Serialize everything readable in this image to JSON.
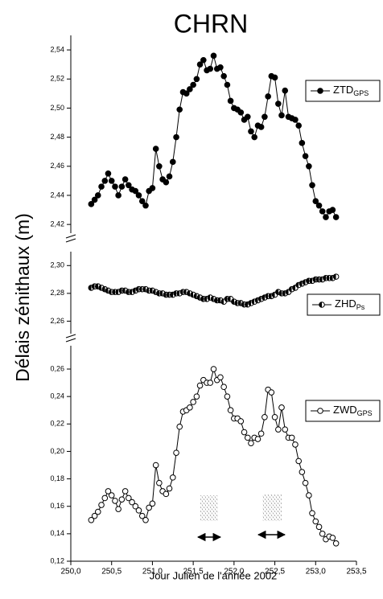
{
  "chart_data": {
    "type": "line",
    "title": "CHRN",
    "xlabel": "Jour Julien de l'année 2002",
    "ylabel": "Délais zénithaux (m)",
    "xlim": [
      250,
      253.5
    ],
    "xticks": [
      {
        "value": 250,
        "label": "250,0"
      },
      {
        "value": 250.5,
        "label": "250,5"
      },
      {
        "value": 251,
        "label": "251,0"
      },
      {
        "value": 251.5,
        "label": "251,5"
      },
      {
        "value": 252,
        "label": "252,0"
      },
      {
        "value": 252.5,
        "label": "252,5"
      },
      {
        "value": 253,
        "label": "253,0"
      },
      {
        "value": 253.5,
        "label": "253,5"
      }
    ],
    "x": [
      250.25,
      250.292,
      250.333,
      250.375,
      250.417,
      250.458,
      250.5,
      250.542,
      250.583,
      250.625,
      250.667,
      250.708,
      250.75,
      250.792,
      250.833,
      250.875,
      250.917,
      250.958,
      251.0,
      251.042,
      251.083,
      251.125,
      251.167,
      251.208,
      251.25,
      251.292,
      251.333,
      251.375,
      251.417,
      251.458,
      251.5,
      251.542,
      251.583,
      251.625,
      251.667,
      251.708,
      251.75,
      251.792,
      251.833,
      251.875,
      251.917,
      251.958,
      252.0,
      252.042,
      252.083,
      252.125,
      252.167,
      252.208,
      252.25,
      252.292,
      252.333,
      252.375,
      252.417,
      252.458,
      252.5,
      252.542,
      252.583,
      252.625,
      252.667,
      252.708,
      252.75,
      252.792,
      252.833,
      252.875,
      252.917,
      252.958,
      253.0,
      253.042,
      253.083,
      253.125,
      253.167,
      253.208,
      253.25
    ],
    "series": [
      {
        "name": "ZTD",
        "subscript": "GPS",
        "color": "#000000",
        "marker": "filled",
        "ylim": [
          2.414,
          2.55
        ],
        "yticks": [
          {
            "value": 2.42,
            "label": "2,42"
          },
          {
            "value": 2.44,
            "label": "2,44"
          },
          {
            "value": 2.46,
            "label": "2,46"
          },
          {
            "value": 2.48,
            "label": "2,48"
          },
          {
            "value": 2.5,
            "label": "2,50"
          },
          {
            "value": 2.52,
            "label": "2,52"
          },
          {
            "value": 2.54,
            "label": "2,54"
          }
        ],
        "values": [
          2.434,
          2.437,
          2.44,
          2.446,
          2.45,
          2.455,
          2.45,
          2.446,
          2.44,
          2.446,
          2.451,
          2.447,
          2.444,
          2.443,
          2.44,
          2.436,
          2.433,
          2.443,
          2.445,
          2.472,
          2.46,
          2.451,
          2.449,
          2.453,
          2.463,
          2.48,
          2.499,
          2.511,
          2.51,
          2.513,
          2.516,
          2.52,
          2.53,
          2.533,
          2.526,
          2.527,
          2.536,
          2.527,
          2.528,
          2.522,
          2.516,
          2.505,
          2.5,
          2.499,
          2.497,
          2.492,
          2.494,
          2.484,
          2.48,
          2.488,
          2.487,
          2.494,
          2.508,
          2.522,
          2.521,
          2.503,
          2.495,
          2.512,
          2.494,
          2.493,
          2.492,
          2.488,
          2.476,
          2.467,
          2.46,
          2.447,
          2.436,
          2.433,
          2.429,
          2.425,
          2.429,
          2.43,
          2.425
        ]
      },
      {
        "name": "ZHD",
        "subscript": "Ps",
        "color": "#000000",
        "marker": "half",
        "ylim": [
          2.251,
          2.31
        ],
        "yticks": [
          {
            "value": 2.26,
            "label": "2,26"
          },
          {
            "value": 2.28,
            "label": "2,28"
          },
          {
            "value": 2.3,
            "label": "2,30"
          }
        ],
        "values": [
          2.284,
          2.285,
          2.285,
          2.284,
          2.283,
          2.282,
          2.281,
          2.281,
          2.281,
          2.282,
          2.282,
          2.281,
          2.281,
          2.282,
          2.283,
          2.283,
          2.283,
          2.282,
          2.282,
          2.281,
          2.28,
          2.28,
          2.279,
          2.279,
          2.279,
          2.28,
          2.28,
          2.281,
          2.281,
          2.28,
          2.279,
          2.278,
          2.277,
          2.276,
          2.276,
          2.277,
          2.276,
          2.275,
          2.275,
          2.274,
          2.276,
          2.276,
          2.274,
          2.273,
          2.273,
          2.272,
          2.272,
          2.273,
          2.274,
          2.275,
          2.276,
          2.277,
          2.278,
          2.278,
          2.279,
          2.281,
          2.28,
          2.28,
          2.281,
          2.283,
          2.284,
          2.286,
          2.287,
          2.288,
          2.289,
          2.289,
          2.29,
          2.29,
          2.29,
          2.291,
          2.291,
          2.291,
          2.292
        ]
      },
      {
        "name": "ZWD",
        "subscript": "GPS",
        "color": "#000000",
        "marker": "open",
        "ylim": [
          0.12,
          0.277
        ],
        "yticks": [
          {
            "value": 0.12,
            "label": "0,12"
          },
          {
            "value": 0.14,
            "label": "0,14"
          },
          {
            "value": 0.16,
            "label": "0,16"
          },
          {
            "value": 0.18,
            "label": "0,18"
          },
          {
            "value": 0.2,
            "label": "0,20"
          },
          {
            "value": 0.22,
            "label": "0,22"
          },
          {
            "value": 0.24,
            "label": "0,24"
          },
          {
            "value": 0.26,
            "label": "0,26"
          }
        ],
        "values": [
          0.15,
          0.153,
          0.156,
          0.161,
          0.166,
          0.171,
          0.168,
          0.164,
          0.158,
          0.165,
          0.171,
          0.166,
          0.163,
          0.16,
          0.157,
          0.153,
          0.15,
          0.159,
          0.162,
          0.19,
          0.177,
          0.171,
          0.169,
          0.173,
          0.181,
          0.199,
          0.218,
          0.229,
          0.23,
          0.232,
          0.236,
          0.24,
          0.248,
          0.252,
          0.25,
          0.25,
          0.26,
          0.252,
          0.254,
          0.247,
          0.24,
          0.23,
          0.224,
          0.224,
          0.222,
          0.214,
          0.21,
          0.206,
          0.21,
          0.209,
          0.213,
          0.225,
          0.245,
          0.243,
          0.225,
          0.216,
          0.232,
          0.216,
          0.21,
          0.21,
          0.205,
          0.193,
          0.185,
          0.177,
          0.168,
          0.155,
          0.149,
          0.145,
          0.14,
          0.136,
          0.138,
          0.137,
          0.133
        ]
      }
    ]
  }
}
